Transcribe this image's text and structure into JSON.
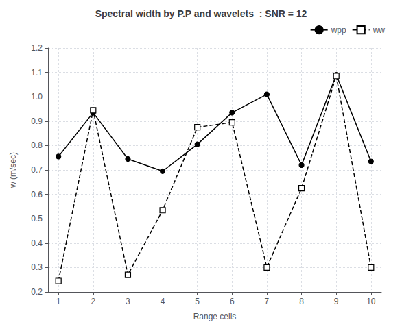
{
  "chart_data": {
    "type": "line",
    "title": "Spectral width by P.P and wavelets  : SNR = 12",
    "xlabel": "Range cells",
    "ylabel": "w (m/sec)",
    "x": [
      1,
      2,
      3,
      4,
      5,
      6,
      7,
      8,
      9,
      10
    ],
    "series": [
      {
        "name": "wpp",
        "color": "#000000",
        "marker": "circle",
        "line_style": "solid",
        "values": [
          0.755,
          0.935,
          0.745,
          0.695,
          0.805,
          0.935,
          1.01,
          0.72,
          1.09,
          0.735
        ]
      },
      {
        "name": "ww",
        "color": "#000000",
        "marker": "square",
        "line_style": "dashed",
        "values": [
          0.245,
          0.945,
          0.27,
          0.535,
          0.875,
          0.895,
          0.3,
          0.625,
          1.085,
          0.3
        ]
      }
    ],
    "xlim": [
      0.7,
      10.3
    ],
    "xticks": [
      1,
      2,
      3,
      4,
      5,
      6,
      7,
      8,
      9,
      10
    ],
    "ylim": [
      0.2,
      1.2
    ],
    "yticks": [
      0.2,
      0.3,
      0.4,
      0.5,
      0.6,
      0.7,
      0.8,
      0.9,
      {
        "value": 1,
        "label": "1.0"
      },
      1.1,
      1.2
    ],
    "grid": true,
    "legend": "upper right"
  }
}
